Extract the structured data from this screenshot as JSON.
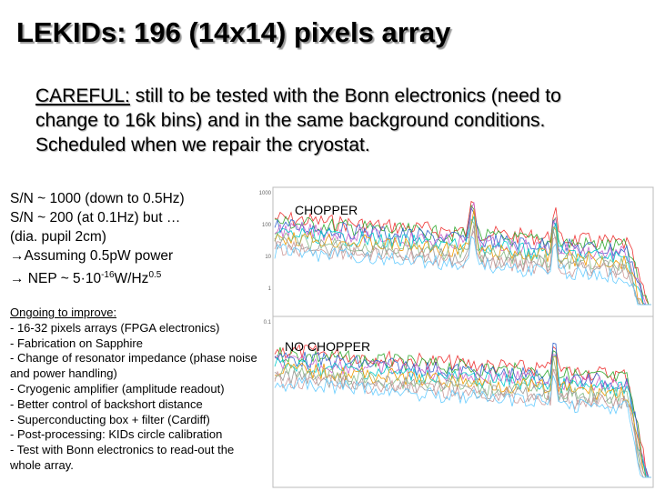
{
  "header": {
    "title": "LEKIDs: 196 (14x14) pixels array"
  },
  "careful": {
    "label": "CAREFUL:",
    "text": " still to be tested with the Bonn electronics (need to change to 16k bins) and in the same background conditions. Scheduled when we repair the cryostat."
  },
  "results": {
    "lines": [
      "S/N ~ 1000 (down to 0.5Hz)",
      "S/N ~ 200 (at 0.1Hz) but …",
      "(dia. pupil 2cm)",
      "→Assuming 0.5pW power"
    ],
    "nep": {
      "prefix": "→ NEP ~ 5·10",
      "exp": "-16",
      "unit": "W/Hz",
      "unit_exp": "0.5"
    }
  },
  "ongoing": {
    "heading": "Ongoing to improve:",
    "items": [
      "- 16-32 pixels arrays (FPGA electronics)",
      "- Fabrication on Sapphire",
      "- Change of resonator impedance (phase noise",
      "and power handling)",
      "- Cryogenic amplifier (amplitude readout)",
      "- Better control of backshort distance",
      "- Superconducting box + filter (Cardiff)",
      "- Post-processing: KIDs circle calibration",
      "- Test with Bonn electronics to read-out the",
      "whole array."
    ]
  },
  "plot": {
    "top_label": "CHOPPER",
    "bottom_label": "NO CHOPPER",
    "top_ticks": [
      "1000",
      "100",
      "10",
      "1"
    ],
    "bottom_ticks": [
      "0.1"
    ]
  }
}
